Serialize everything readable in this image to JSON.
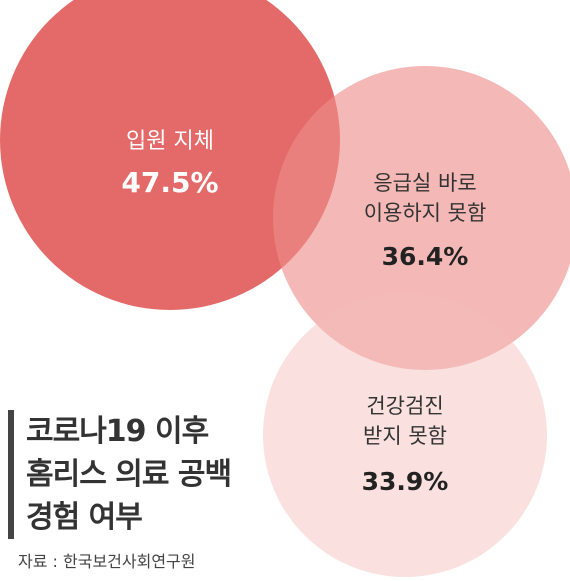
{
  "chart_data": {
    "type": "bubble",
    "series": [
      {
        "label_lines": [
          "입원 지체"
        ],
        "value": "47.5%",
        "color": "#e46a6a",
        "opacity": 1.0,
        "value_color": "#ffffff",
        "label_color": "#ffffff"
      },
      {
        "label_lines": [
          "응급실 바로",
          "이용하지 못함"
        ],
        "value": "36.4%",
        "color": "#ee8e8a",
        "opacity": 0.62,
        "value_color": "#222222",
        "label_color": "#333333"
      },
      {
        "label_lines": [
          "건강검진",
          "받지 못함"
        ],
        "value": "33.9%",
        "color": "#f5bdb9",
        "opacity": 0.45,
        "value_color": "#222222",
        "label_color": "#333333"
      }
    ]
  },
  "title_lines": [
    "코로나19 이후",
    "홈리스 의료 공백",
    "경험 여부"
  ],
  "source": "자료 : 한국보건사회연구원"
}
